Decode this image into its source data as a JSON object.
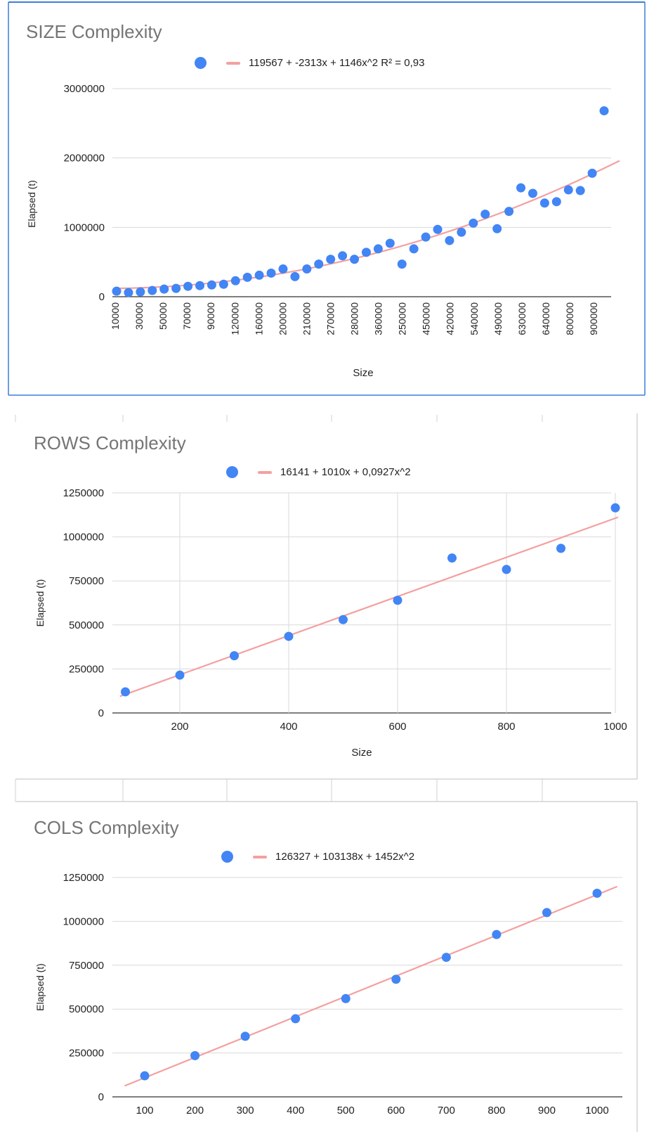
{
  "chart_data": [
    {
      "type": "scatter",
      "title": "SIZE Complexity",
      "xlabel": "Size",
      "ylabel": "Elapsed (t)",
      "ylim": [
        0,
        3000000
      ],
      "y_ticks": [
        "0",
        "1000000",
        "2000000",
        "3000000"
      ],
      "x_tick_labels": [
        "10000",
        "30000",
        "50000",
        "70000",
        "90000",
        "120000",
        "160000",
        "200000",
        "210000",
        "270000",
        "280000",
        "360000",
        "250000",
        "450000",
        "420000",
        "540000",
        "490000",
        "630000",
        "640000",
        "800000",
        "900000"
      ],
      "trendline": "119567 + -2313x + 1146x^2 R² = 0,93",
      "grid": "horizontal",
      "legend": "top",
      "values": [
        80000,
        60000,
        70000,
        90000,
        110000,
        120000,
        150000,
        160000,
        170000,
        180000,
        230000,
        280000,
        310000,
        340000,
        400000,
        290000,
        400000,
        470000,
        540000,
        590000,
        540000,
        640000,
        690000,
        770000,
        470000,
        690000,
        860000,
        970000,
        810000,
        930000,
        1060000,
        1190000,
        980000,
        1230000,
        1570000,
        1490000,
        1350000,
        1370000,
        1540000,
        1530000,
        1780000,
        2680000
      ]
    },
    {
      "type": "scatter",
      "title": "ROWS Complexity",
      "xlabel": "Size",
      "ylabel": "Elapsed (t)",
      "ylim": [
        0,
        1250000
      ],
      "xlim": [
        80,
        1000
      ],
      "y_ticks": [
        "0",
        "250000",
        "500000",
        "750000",
        "1000000",
        "1250000"
      ],
      "x_ticks": [
        "200",
        "400",
        "600",
        "800",
        "1000"
      ],
      "trendline": "16141 + 1010x + 0,0927x^2",
      "grid": "both",
      "legend": "top",
      "x": [
        100,
        200,
        300,
        400,
        500,
        600,
        700,
        800,
        900,
        1000
      ],
      "values": [
        120000,
        215000,
        325000,
        435000,
        530000,
        640000,
        880000,
        815000,
        935000,
        1165000
      ]
    },
    {
      "type": "scatter",
      "title": "COLS Complexity",
      "xlabel": "",
      "ylabel": "Elapsed (t)",
      "ylim": [
        0,
        1250000
      ],
      "xlim": [
        40,
        1050
      ],
      "y_ticks": [
        "0",
        "250000",
        "500000",
        "750000",
        "1000000",
        "1250000"
      ],
      "x_ticks": [
        "100",
        "200",
        "300",
        "400",
        "500",
        "600",
        "700",
        "800",
        "900",
        "1000"
      ],
      "trendline": "126327 + 103138x + 1452x^2",
      "grid": "horizontal",
      "legend": "top",
      "x": [
        100,
        200,
        300,
        400,
        500,
        600,
        700,
        800,
        900,
        1000
      ],
      "values": [
        120000,
        235000,
        345000,
        445000,
        560000,
        670000,
        795000,
        925000,
        1050000,
        1160000
      ]
    }
  ]
}
